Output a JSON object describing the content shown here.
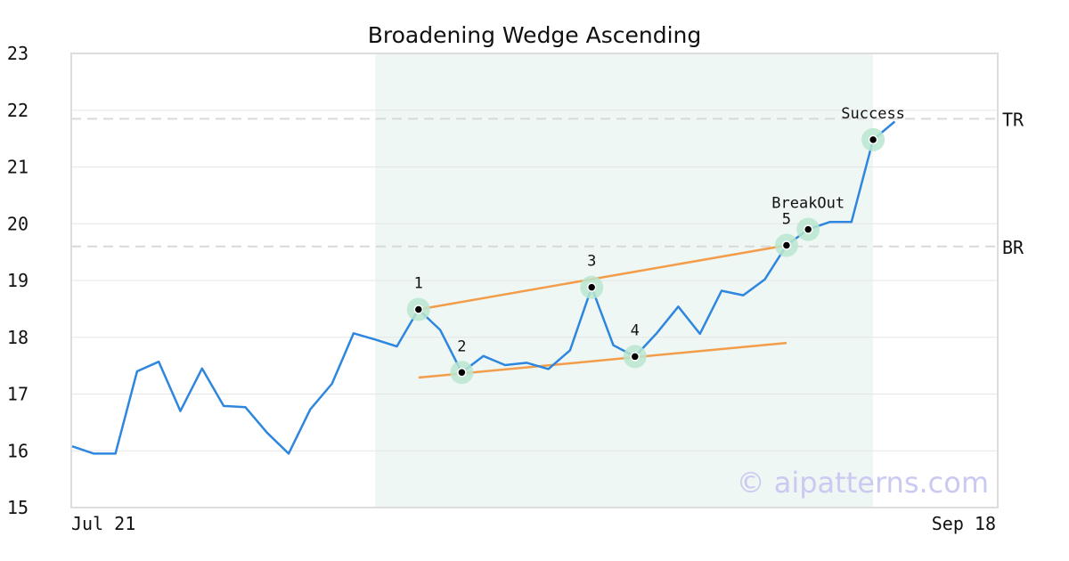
{
  "chart_data": {
    "type": "line",
    "title": "Broadening Wedge Ascending",
    "xlabel": "",
    "ylabel": "",
    "ylim": [
      15,
      23
    ],
    "yticks": [
      15,
      16,
      17,
      18,
      19,
      20,
      21,
      22,
      23
    ],
    "x_tick_labels": [
      "Jul 21",
      "Sep 18"
    ],
    "grid": true,
    "series": [
      {
        "color": "#2e86de",
        "values": [
          16.08,
          15.95,
          15.95,
          17.4,
          17.57,
          16.7,
          17.45,
          16.79,
          16.77,
          16.32,
          15.95,
          16.73,
          17.18,
          18.07,
          17.96,
          17.84,
          18.49,
          18.13,
          17.38,
          17.67,
          17.51,
          17.55,
          17.44,
          17.77,
          18.88,
          17.86,
          17.66,
          18.07,
          18.54,
          18.06,
          18.82,
          18.74,
          19.02,
          19.62,
          19.9,
          20.03,
          20.03,
          21.48,
          21.8
        ]
      }
    ],
    "pattern_region": {
      "start_index": 14,
      "end_index": 37,
      "color": "#eef7f3"
    },
    "trendlines": [
      {
        "name": "upper",
        "color": "#f39c4a",
        "x0": 16,
        "y0": 18.49,
        "x1": 33,
        "y1": 19.62
      },
      {
        "name": "lower",
        "color": "#f39c4a",
        "x0": 16,
        "y0": 17.29,
        "x1": 33,
        "y1": 17.9
      }
    ],
    "points": [
      {
        "index": 16,
        "value": 18.49,
        "label": "1"
      },
      {
        "index": 18,
        "value": 17.38,
        "label": "2"
      },
      {
        "index": 24,
        "value": 18.88,
        "label": "3"
      },
      {
        "index": 26,
        "value": 17.66,
        "label": "4"
      },
      {
        "index": 33,
        "value": 19.62,
        "label": "5"
      },
      {
        "index": 34,
        "value": 19.9,
        "label": "BreakOut"
      },
      {
        "index": 37,
        "value": 21.48,
        "label": "Success"
      }
    ],
    "reference_lines": [
      {
        "value": 21.85,
        "label": "TR"
      },
      {
        "value": 19.6,
        "label": "BR"
      }
    ]
  },
  "watermark": "© aipatterns.com"
}
